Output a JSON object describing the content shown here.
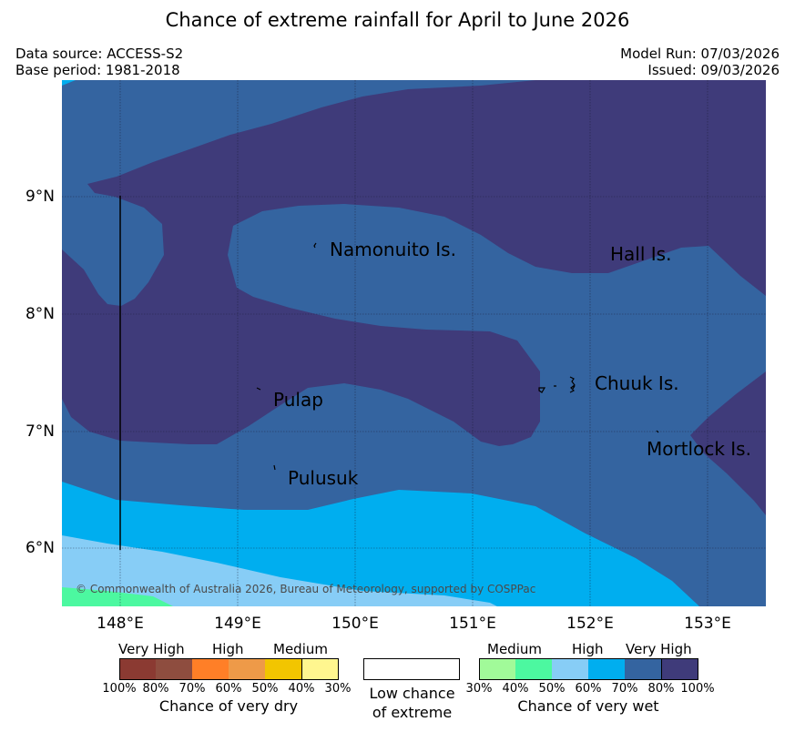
{
  "title": "Chance of extreme rainfall for April to June 2026",
  "meta": {
    "data_source": "Data source: ACCESS-S2",
    "base_period": "Base period: 1981-2018",
    "model_run": "Model Run: 07/03/2026",
    "issued": "Issued: 09/03/2026"
  },
  "map": {
    "copyright": "© Commonwealth of Australia 2026, Bureau of Meteorology, supported by COSPPac",
    "lat_labels": [
      "9°N",
      "8°N",
      "7°N",
      "6°N"
    ],
    "lon_labels": [
      "148°E",
      "149°E",
      "150°E",
      "151°E",
      "152°E",
      "153°E"
    ],
    "places": [
      "Namonuito Is.",
      "Hall Is.",
      "Chuuk Is.",
      "Pulap",
      "Mortlock Is.",
      "Pulusuk"
    ],
    "colors": {
      "very_high_wet_80_100": "#3f3b7a",
      "very_high_wet_70_80": "#3464a0",
      "high_wet_60_70": "#00aeef",
      "high_wet_50_60": "#87cdf6",
      "medium_wet_40_50": "#4cf8a0",
      "medium_wet_30_40": "#a1fa99"
    }
  },
  "legend": {
    "dry": {
      "categories": [
        "Very High",
        "High",
        "Medium"
      ],
      "percents": [
        "100%",
        "80%",
        "70%",
        "60%",
        "50%",
        "40%",
        "30%"
      ],
      "colors": [
        "#8b3a32",
        "#8e4d3f",
        "#ff7f27",
        "#ee9a48",
        "#f2c500",
        "#fff68f"
      ],
      "caption": "Chance of very dry"
    },
    "neutral": {
      "caption_line1": "Low chance",
      "caption_line2": "of extreme",
      "color": "#ffffff"
    },
    "wet": {
      "categories": [
        "Medium",
        "High",
        "Very High"
      ],
      "percents": [
        "30%",
        "40%",
        "50%",
        "60%",
        "70%",
        "80%",
        "100%"
      ],
      "colors": [
        "#a1fa99",
        "#4cf8a0",
        "#87cdf6",
        "#00aeef",
        "#3464a0",
        "#3f3b7a"
      ],
      "caption": "Chance of very wet"
    }
  }
}
